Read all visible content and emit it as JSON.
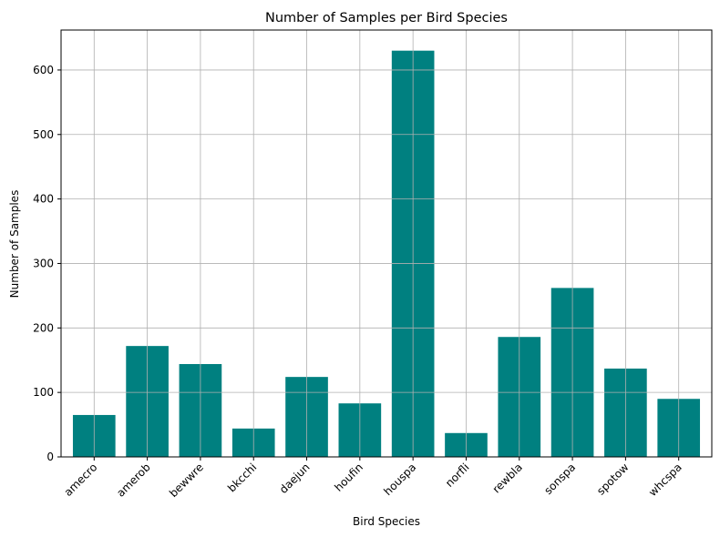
{
  "chart_data": {
    "type": "bar",
    "title": "Number of Samples per Bird Species",
    "xlabel": "Bird Species",
    "ylabel": "Number of Samples",
    "categories": [
      "amecro",
      "amerob",
      "bewwre",
      "bkcchi",
      "daejun",
      "houfin",
      "houspa",
      "norfli",
      "rewbla",
      "sonspa",
      "spotow",
      "whcspa"
    ],
    "values": [
      65,
      172,
      144,
      44,
      124,
      83,
      630,
      37,
      186,
      262,
      137,
      90
    ],
    "ylim": [
      0,
      662
    ],
    "yticks": [
      0,
      100,
      200,
      300,
      400,
      500,
      600
    ],
    "bar_color": "#008080",
    "grid": true
  }
}
